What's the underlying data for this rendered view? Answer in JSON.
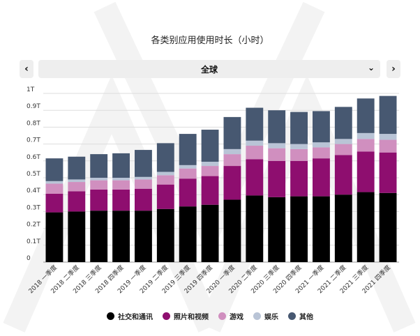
{
  "title": "各类别应用使用时长（小时）",
  "region_selector": {
    "selected": "全球"
  },
  "icons": {
    "prev": "chevron-left-icon",
    "next": "chevron-right-icon",
    "dropdown": "chevron-down-icon"
  },
  "chart_data": {
    "type": "bar",
    "stacked": true,
    "categories": [
      "2018 一季度",
      "2018 二季度",
      "2018 三季度",
      "2018 四季度",
      "2019 一季度",
      "2019 二季度",
      "2019 三季度",
      "2019 四季度",
      "2020 一季度",
      "2020 二季度",
      "2020 三季度",
      "2020 四季度",
      "2021 一季度",
      "2021 二季度",
      "2021 三季度",
      "2021 四季度"
    ],
    "y_ticks": [
      "0",
      "0.1T",
      "0.2T",
      "0.3T",
      "0.4T",
      "0.5T",
      "0.6T",
      "0.7T",
      "0.8T",
      "0.9T",
      "1T"
    ],
    "ylim": [
      0,
      1
    ],
    "grid": true,
    "legend_position": "bottom",
    "series": [
      {
        "name": "社交和通讯",
        "color": "#000000",
        "values": [
          0.295,
          0.3,
          0.305,
          0.305,
          0.305,
          0.315,
          0.33,
          0.34,
          0.37,
          0.395,
          0.385,
          0.39,
          0.39,
          0.4,
          0.415,
          0.41
        ]
      },
      {
        "name": "照片和视频",
        "color": "#8e0e6f",
        "values": [
          0.11,
          0.12,
          0.125,
          0.125,
          0.13,
          0.145,
          0.165,
          0.17,
          0.2,
          0.215,
          0.215,
          0.21,
          0.225,
          0.235,
          0.24,
          0.24
        ]
      },
      {
        "name": "游戏",
        "color": "#d08fbf",
        "values": [
          0.06,
          0.055,
          0.055,
          0.055,
          0.055,
          0.055,
          0.06,
          0.06,
          0.07,
          0.08,
          0.075,
          0.07,
          0.065,
          0.065,
          0.075,
          0.075
        ]
      },
      {
        "name": "娱乐",
        "color": "#b9c4d6",
        "values": [
          0.015,
          0.015,
          0.015,
          0.015,
          0.015,
          0.02,
          0.02,
          0.025,
          0.03,
          0.03,
          0.03,
          0.03,
          0.03,
          0.03,
          0.035,
          0.035
        ]
      },
      {
        "name": "其他",
        "color": "#475871",
        "values": [
          0.135,
          0.135,
          0.14,
          0.145,
          0.16,
          0.17,
          0.185,
          0.19,
          0.19,
          0.195,
          0.195,
          0.19,
          0.185,
          0.19,
          0.205,
          0.225
        ]
      }
    ]
  }
}
